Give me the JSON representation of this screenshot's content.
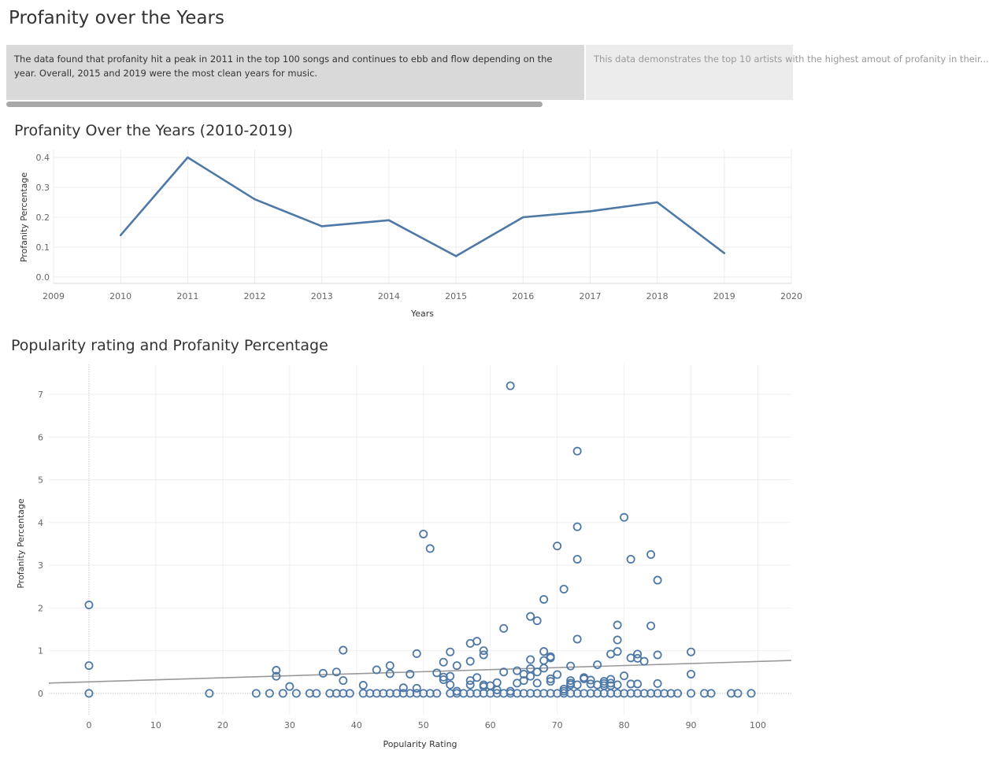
{
  "dashboard": {
    "title": "Profanity over the Years",
    "story_points": [
      {
        "text": "The data found that profanity hit a peak in 2011 in the top 100 songs and continues to ebb and flow depending on the year. Overall, 2015 and 2019 were the most clean years for music.",
        "active": true
      },
      {
        "text": "This data demonstrates the top 10 artists with the highest amout of profanity in their...",
        "active": false
      }
    ]
  },
  "chart_data": [
    {
      "type": "line",
      "title": "Profanity Over the Years (2010-2019)",
      "xlabel": "Years",
      "ylabel": "Profanity Percentage",
      "x": [
        2010,
        2011,
        2012,
        2013,
        2014,
        2015,
        2016,
        2017,
        2018,
        2019
      ],
      "series": [
        {
          "values": [
            0.14,
            0.4,
            0.26,
            0.17,
            0.19,
            0.07,
            0.2,
            0.22,
            0.25,
            0.08
          ]
        }
      ],
      "xlim": [
        2009,
        2020
      ],
      "ylim": [
        0,
        0.4
      ],
      "x_ticks": [
        "2009",
        "2010",
        "2011",
        "2012",
        "2013",
        "2014",
        "2015",
        "2016",
        "2017",
        "2018",
        "2019",
        "2020"
      ],
      "y_ticks": [
        "0.0",
        "0.1",
        "0.2",
        "0.3",
        "0.4"
      ],
      "grid": true,
      "color": "#4e79a7"
    },
    {
      "type": "scatter",
      "title": "Popularity rating and Profanity Percentage",
      "xlabel": "Popularity Rating",
      "ylabel": "Profanity Percentage",
      "xlim": [
        -6,
        105
      ],
      "ylim": [
        -0.5,
        7.7
      ],
      "x_ticks": [
        "0",
        "10",
        "20",
        "30",
        "40",
        "50",
        "60",
        "70",
        "80",
        "90",
        "100"
      ],
      "y_ticks": [
        "0",
        "1",
        "2",
        "3",
        "4",
        "5",
        "6",
        "7"
      ],
      "grid": true,
      "color": "#4e79a7",
      "trend_line": {
        "from": [
          -6,
          0.24
        ],
        "to": [
          105,
          0.77
        ],
        "color": "#999999"
      },
      "points": [
        [
          0,
          2.07
        ],
        [
          0,
          0.65
        ],
        [
          0,
          0
        ],
        [
          18,
          0
        ],
        [
          25,
          0
        ],
        [
          27,
          0
        ],
        [
          28,
          0.54
        ],
        [
          28,
          0.4
        ],
        [
          29,
          0
        ],
        [
          30,
          0.16
        ],
        [
          31,
          0
        ],
        [
          33,
          0
        ],
        [
          34,
          0
        ],
        [
          35,
          0.47
        ],
        [
          36,
          0
        ],
        [
          37,
          0.5
        ],
        [
          37,
          0
        ],
        [
          38,
          1.01
        ],
        [
          38,
          0.3
        ],
        [
          38,
          0
        ],
        [
          39,
          0
        ],
        [
          41,
          0.19
        ],
        [
          41,
          0
        ],
        [
          42,
          0
        ],
        [
          43,
          0.55
        ],
        [
          43,
          0
        ],
        [
          44,
          0
        ],
        [
          45,
          0.65
        ],
        [
          45,
          0.46
        ],
        [
          45,
          0
        ],
        [
          46,
          0
        ],
        [
          47,
          0.13
        ],
        [
          47,
          0
        ],
        [
          48,
          0.45
        ],
        [
          48,
          0
        ],
        [
          49,
          0.93
        ],
        [
          49,
          0.12
        ],
        [
          49,
          0
        ],
        [
          50,
          3.73
        ],
        [
          50,
          0
        ],
        [
          51,
          3.39
        ],
        [
          51,
          0
        ],
        [
          52,
          0.48
        ],
        [
          52,
          0
        ],
        [
          53,
          0.73
        ],
        [
          53,
          0.38
        ],
        [
          53,
          0.32
        ],
        [
          54,
          0.97
        ],
        [
          54,
          0.4
        ],
        [
          54,
          0.2
        ],
        [
          54,
          0
        ],
        [
          55,
          0.65
        ],
        [
          55,
          0.05
        ],
        [
          55,
          0
        ],
        [
          56,
          0
        ],
        [
          57,
          1.17
        ],
        [
          57,
          0.75
        ],
        [
          57,
          0.3
        ],
        [
          57,
          0.2
        ],
        [
          57,
          0
        ],
        [
          58,
          1.22
        ],
        [
          58,
          0.37
        ],
        [
          58,
          0
        ],
        [
          59,
          1.0
        ],
        [
          59,
          0.9
        ],
        [
          59,
          0.2
        ],
        [
          59,
          0.16
        ],
        [
          59,
          0
        ],
        [
          60,
          0.18
        ],
        [
          60,
          0
        ],
        [
          61,
          0.25
        ],
        [
          61,
          0.08
        ],
        [
          61,
          0
        ],
        [
          62,
          1.52
        ],
        [
          62,
          0.5
        ],
        [
          62,
          0
        ],
        [
          63,
          7.2
        ],
        [
          63,
          0.05
        ],
        [
          63,
          0
        ],
        [
          64,
          0.53
        ],
        [
          64,
          0.24
        ],
        [
          64,
          0
        ],
        [
          65,
          0.45
        ],
        [
          65,
          0.3
        ],
        [
          65,
          0
        ],
        [
          66,
          1.8
        ],
        [
          66,
          0.79
        ],
        [
          66,
          0.58
        ],
        [
          66,
          0.4
        ],
        [
          66,
          0
        ],
        [
          67,
          1.7
        ],
        [
          67,
          0.5
        ],
        [
          67,
          0.24
        ],
        [
          67,
          0
        ],
        [
          68,
          2.2
        ],
        [
          68,
          0.98
        ],
        [
          68,
          0.77
        ],
        [
          68,
          0.59
        ],
        [
          68,
          0
        ],
        [
          69,
          0.86
        ],
        [
          69,
          0.83
        ],
        [
          69,
          0.34
        ],
        [
          69,
          0.28
        ],
        [
          69,
          0
        ],
        [
          70,
          3.45
        ],
        [
          70,
          0.44
        ],
        [
          70,
          0
        ],
        [
          71,
          2.44
        ],
        [
          71,
          0.1
        ],
        [
          71,
          0.05
        ],
        [
          71,
          0
        ],
        [
          72,
          0.64
        ],
        [
          72,
          0.3
        ],
        [
          72,
          0.24
        ],
        [
          72,
          0.2
        ],
        [
          72,
          0
        ],
        [
          73,
          5.67
        ],
        [
          73,
          3.9
        ],
        [
          73,
          3.14
        ],
        [
          73,
          1.27
        ],
        [
          73,
          0.2
        ],
        [
          73,
          0
        ],
        [
          74,
          0.37
        ],
        [
          74,
          0.34
        ],
        [
          74,
          0
        ],
        [
          75,
          0.31
        ],
        [
          75,
          0.22
        ],
        [
          75,
          0
        ],
        [
          76,
          0.67
        ],
        [
          76,
          0.2
        ],
        [
          76,
          0
        ],
        [
          77,
          0.28
        ],
        [
          77,
          0.23
        ],
        [
          77,
          0.18
        ],
        [
          77,
          0
        ],
        [
          78,
          0.92
        ],
        [
          78,
          0.33
        ],
        [
          78,
          0.24
        ],
        [
          78,
          0.18
        ],
        [
          78,
          0
        ],
        [
          79,
          1.6
        ],
        [
          79,
          1.25
        ],
        [
          79,
          0.98
        ],
        [
          79,
          0.2
        ],
        [
          79,
          0
        ],
        [
          80,
          4.12
        ],
        [
          80,
          0.41
        ],
        [
          80,
          0
        ],
        [
          81,
          3.14
        ],
        [
          81,
          0.83
        ],
        [
          81,
          0.22
        ],
        [
          81,
          0
        ],
        [
          82,
          0.92
        ],
        [
          82,
          0.82
        ],
        [
          82,
          0.22
        ],
        [
          82,
          0
        ],
        [
          83,
          0.75
        ],
        [
          83,
          0
        ],
        [
          84,
          3.25
        ],
        [
          84,
          1.58
        ],
        [
          84,
          0
        ],
        [
          85,
          2.65
        ],
        [
          85,
          0.9
        ],
        [
          85,
          0.23
        ],
        [
          85,
          0
        ],
        [
          86,
          0
        ],
        [
          87,
          0
        ],
        [
          88,
          0
        ],
        [
          90,
          0.97
        ],
        [
          90,
          0.45
        ],
        [
          90,
          0
        ],
        [
          92,
          0
        ],
        [
          93,
          0
        ],
        [
          96,
          0
        ],
        [
          97,
          0
        ],
        [
          99,
          0
        ]
      ]
    }
  ]
}
